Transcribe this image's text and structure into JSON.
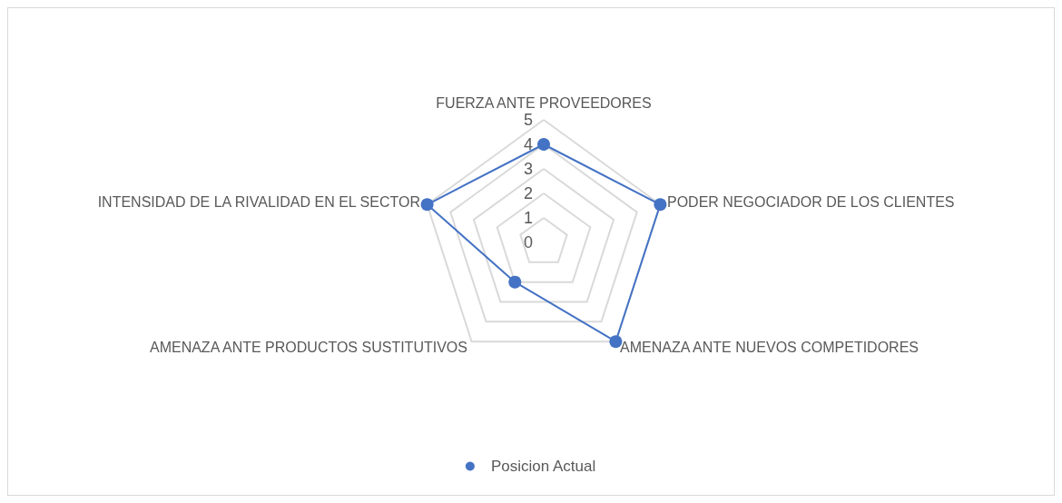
{
  "chart_data": {
    "type": "radar",
    "categories": [
      "FUERZA ANTE PROVEEDORES",
      "PODER NEGOCIADOR DE LOS CLIENTES",
      "AMENAZA ANTE NUEVOS COMPETIDORES",
      "AMENAZA ANTE PRODUCTOS SUSTITUTIVOS",
      "INTENSIDAD DE LA RIVALIDAD EN EL SECTOR"
    ],
    "series": [
      {
        "name": "Posicion Actual",
        "color": "#4472c4",
        "values": [
          4,
          5,
          5,
          2,
          5
        ]
      }
    ],
    "ylim": [
      0,
      5
    ],
    "yticks": [
      0,
      1,
      2,
      3,
      4,
      5
    ],
    "grid": true,
    "legend": "bottom",
    "marker": "circle",
    "line_style": "solid"
  }
}
